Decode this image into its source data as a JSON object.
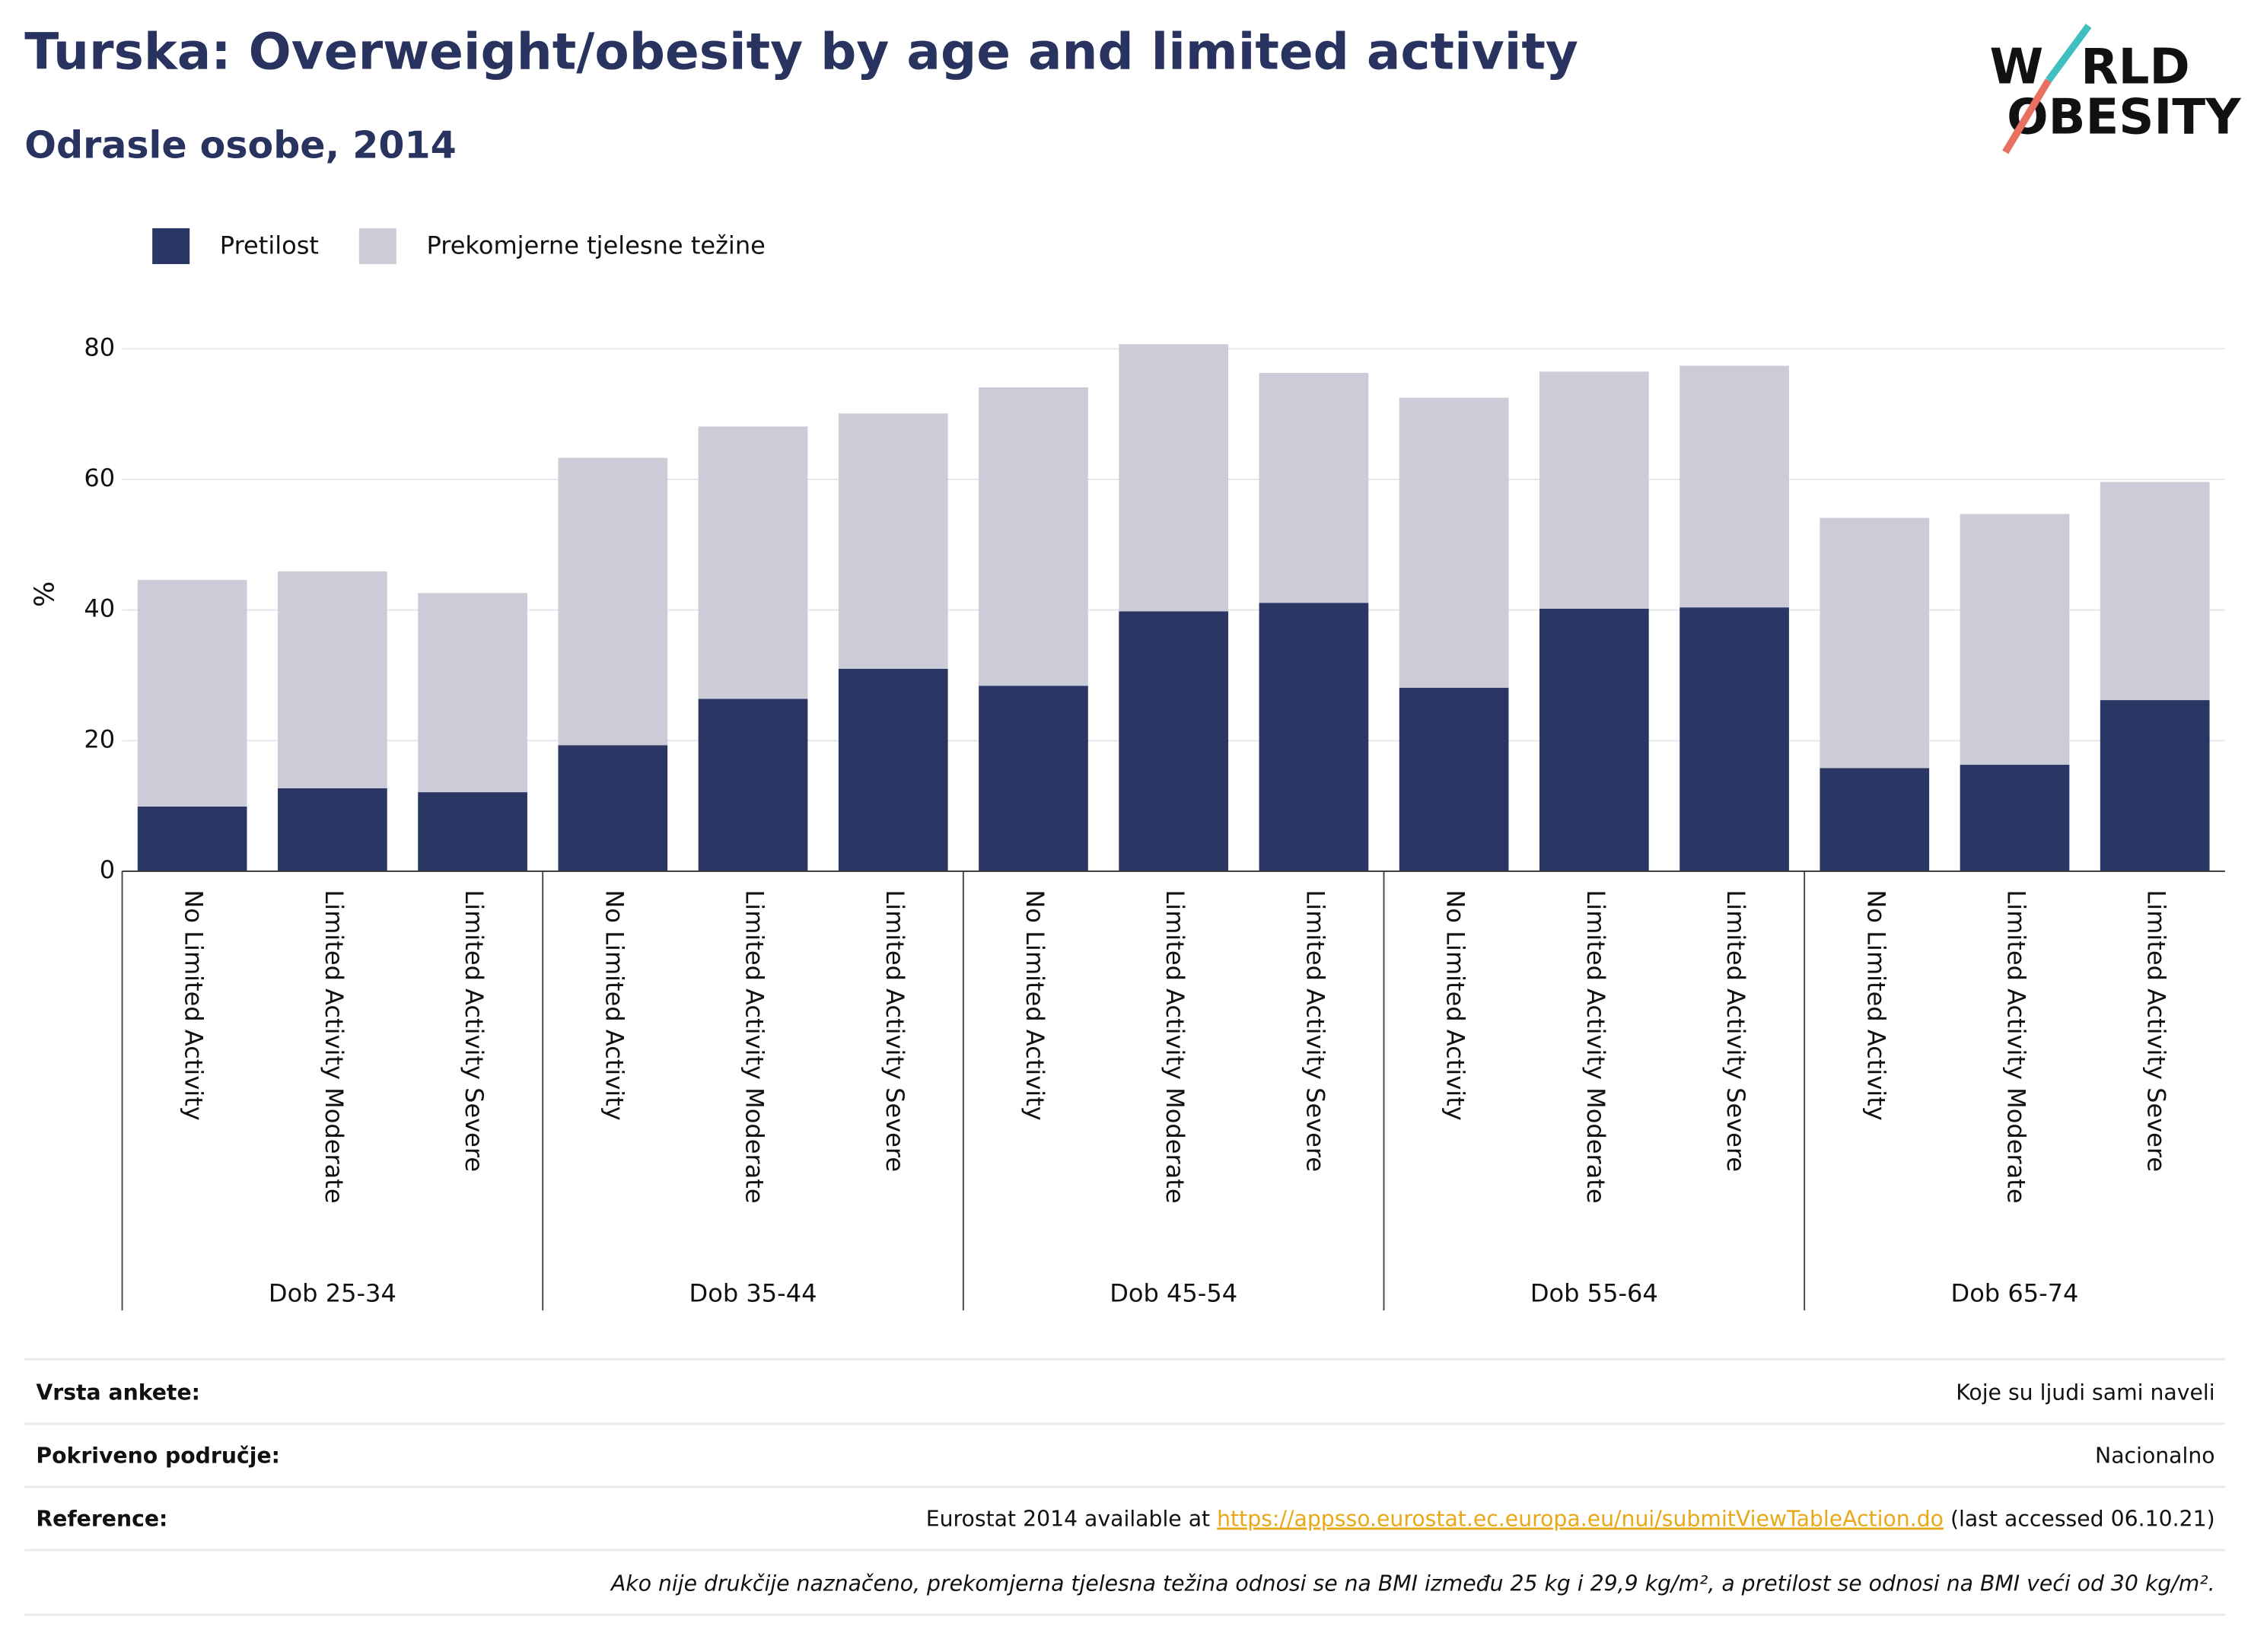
{
  "chart_data": {
    "type": "stacked_bar",
    "title": "Turska: Overweight/obesity by age and limited activity",
    "subtitle": "Odrasle osobe, 2014",
    "y_label": "%",
    "categories": [
      "No Limited Activity",
      "Limited Activity Moderate",
      "Limited Activity Severe",
      "No Limited Activity",
      "Limited Activity Moderate",
      "Limited Activity Severe",
      "No Limited Activity",
      "Limited Activity Moderate",
      "Limited Activity Severe",
      "No Limited Activity",
      "Limited Activity Moderate",
      "Limited Activity Severe",
      "No Limited Activity",
      "Limited Activity Moderate",
      "Limited Activity Severe"
    ],
    "groups": [
      "Dob 25-34",
      "Dob 35-44",
      "Dob 45-54",
      "Dob 55-64",
      "Dob 65-74"
    ],
    "series": [
      {
        "name": "Pretilost",
        "color": "#2a3663",
        "values": [
          9.9,
          12.7,
          12.1,
          19.3,
          26.4,
          31.0,
          28.4,
          39.8,
          41.1,
          28.1,
          40.2,
          40.4,
          15.8,
          16.3,
          26.2
        ]
      },
      {
        "name": "Prekomjerne tjelesne težine",
        "color": "#cbccd8",
        "values": [
          34.7,
          33.2,
          30.5,
          44.0,
          41.7,
          39.1,
          45.7,
          40.9,
          35.2,
          44.4,
          36.3,
          37.0,
          38.3,
          38.4,
          33.4
        ]
      }
    ],
    "ylim": [
      0,
      80
    ],
    "yticks": [
      0,
      20,
      40,
      60,
      80
    ],
    "grid": true,
    "legend": "top-left"
  },
  "logo": [
    "W",
    "RLD",
    "OBESITY"
  ],
  "footer": {
    "rows": [
      {
        "label": "Vrsta ankete:",
        "value": "Koje su ljudi sami naveli"
      },
      {
        "label": "Pokriveno područje:",
        "value": "Nacionalno"
      }
    ],
    "reference": {
      "label": "Reference:",
      "prefix": "Eurostat 2014 available at ",
      "link": "https://appsso.eurostat.ec.europa.eu/nui/submitViewTableAction.do",
      "suffix": " (last accessed 06.10.21)"
    },
    "note": "Ako nije drukčije naznačeno, prekomjerna tjelesna težina odnosi se na BMI između 25 kg i 29,9 kg/m², a pretilost se odnosi na BMI veći od 30 kg/m²."
  }
}
